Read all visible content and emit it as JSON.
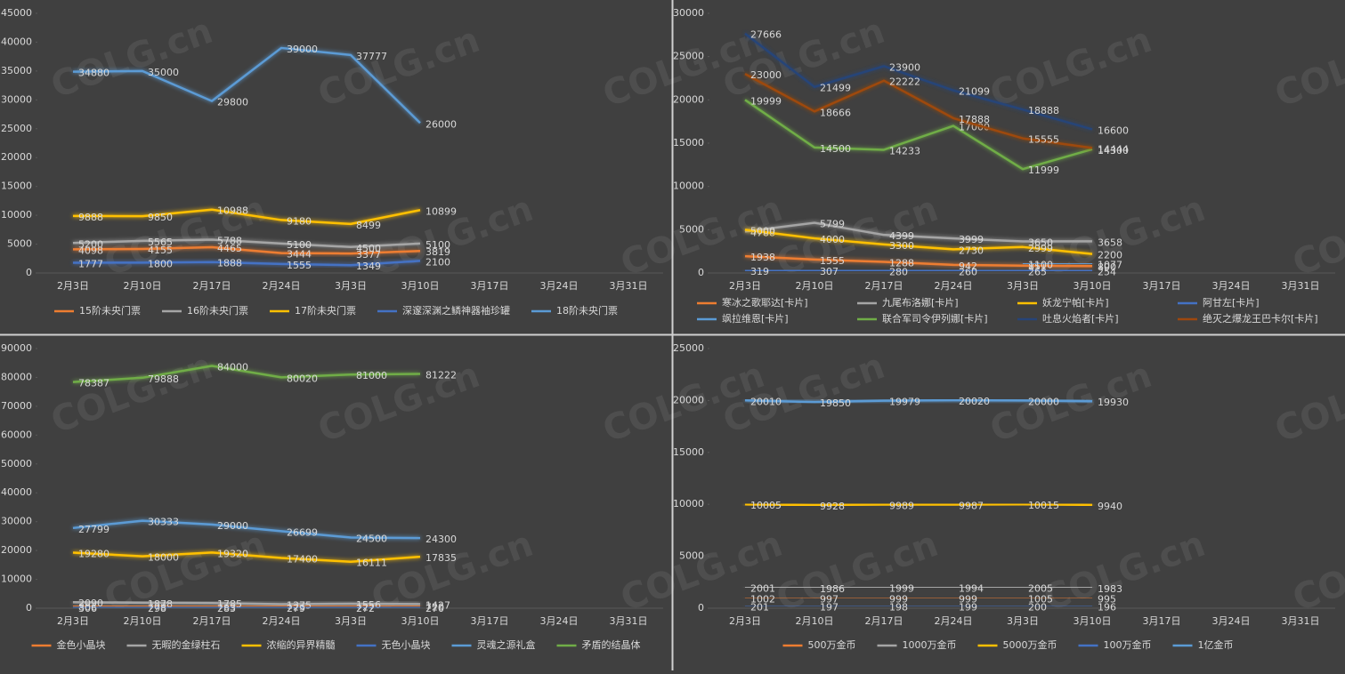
{
  "watermark": "COLG.cn",
  "chart_data": [
    {
      "type": "line",
      "categories": [
        "2月3日",
        "2月10日",
        "2月17日",
        "2月24日",
        "3月3日",
        "3月10日",
        "3月17日",
        "3月24日",
        "3月31日"
      ],
      "ylim": [
        0,
        45000
      ],
      "yticks": [
        0,
        5000,
        10000,
        15000,
        20000,
        25000,
        30000,
        35000,
        40000,
        45000
      ],
      "series": [
        {
          "name": "15阶未央门票",
          "color": "#ed7d31",
          "values": [
            4098,
            4155,
            4465,
            3444,
            3377,
            3819,
            null,
            null,
            null
          ]
        },
        {
          "name": "16阶未央门票",
          "color": "#a5a5a5",
          "values": [
            5200,
            5565,
            5788,
            5100,
            4500,
            5100,
            null,
            null,
            null
          ]
        },
        {
          "name": "17阶未央门票",
          "color": "#ffc000",
          "values": [
            9888,
            9850,
            10988,
            9180,
            8499,
            10899,
            null,
            null,
            null
          ]
        },
        {
          "name": "深邃深渊之鳞神器袖珍罐",
          "color": "#4472c4",
          "values": [
            1777,
            1800,
            1888,
            1555,
            1349,
            2100,
            null,
            null,
            null
          ]
        },
        {
          "name": "18阶未央门票",
          "color": "#5b9bd5",
          "values": [
            34880,
            35000,
            29800,
            39000,
            37777,
            26000,
            null,
            null,
            null
          ]
        }
      ]
    },
    {
      "type": "line",
      "categories": [
        "2月3日",
        "2月10日",
        "2月17日",
        "2月24日",
        "3月3日",
        "3月10日",
        "3月17日",
        "3月24日",
        "3月31日"
      ],
      "ylim": [
        0,
        30000
      ],
      "yticks": [
        0,
        5000,
        10000,
        15000,
        20000,
        25000,
        30000
      ],
      "series": [
        {
          "name": "寒冰之歌耶达[卡片]",
          "color": "#ed7d31",
          "values": [
            1938,
            1555,
            1288,
            942,
            851,
            800,
            null,
            null,
            null
          ]
        },
        {
          "name": "九尾布洛娜[卡片]",
          "color": "#a5a5a5",
          "values": [
            4788,
            5799,
            4399,
            3999,
            3650,
            3658,
            null,
            null,
            null
          ]
        },
        {
          "name": "妖龙宁帕[卡片]",
          "color": "#ffc000",
          "values": [
            5000,
            4000,
            3300,
            2730,
            2999,
            2200,
            null,
            null,
            null
          ]
        },
        {
          "name": "阿甘左[卡片]",
          "color": "#4472c4",
          "values": [
            319,
            307,
            280,
            260,
            265,
            254,
            null,
            null,
            null
          ]
        },
        {
          "name": "飒拉维恩[卡片]",
          "color": "#5b9bd5",
          "values": [
            null,
            null,
            null,
            null,
            1100,
            1077,
            null,
            null,
            null
          ]
        },
        {
          "name": "联合军司令伊列娜[卡片]",
          "color": "#70ad47",
          "values": [
            19999,
            14500,
            14233,
            17000,
            11999,
            14300,
            null,
            null,
            null
          ]
        },
        {
          "name": "吐息火焰者[卡片]",
          "color": "#264478",
          "values": [
            27666,
            21499,
            23900,
            21099,
            18888,
            16600,
            null,
            null,
            null
          ]
        },
        {
          "name": "绝灭之爆龙王巴卡尔[卡片]",
          "color": "#9e480e",
          "values": [
            23000,
            18666,
            22222,
            17888,
            15555,
            14444,
            null,
            null,
            null
          ]
        }
      ]
    },
    {
      "type": "line",
      "categories": [
        "2月3日",
        "2月10日",
        "2月17日",
        "2月24日",
        "3月3日",
        "3月10日",
        "3月17日",
        "3月24日",
        "3月31日"
      ],
      "ylim": [
        0,
        90000
      ],
      "yticks": [
        0,
        10000,
        20000,
        30000,
        40000,
        50000,
        60000,
        70000,
        80000,
        90000
      ],
      "series": [
        {
          "name": "金色小晶块",
          "color": "#ed7d31",
          "values": [
            806,
            778,
            763,
            725,
            727,
            720,
            null,
            null,
            null
          ]
        },
        {
          "name": "无暇的金绿柱石",
          "color": "#a5a5a5",
          "values": [
            2090,
            1878,
            1785,
            1375,
            1556,
            1427,
            null,
            null,
            null
          ]
        },
        {
          "name": "浓缩的异界精髓",
          "color": "#ffc000",
          "values": [
            19280,
            18000,
            19320,
            17400,
            16111,
            17835,
            null,
            null,
            null
          ]
        },
        {
          "name": "无色小晶块",
          "color": "#4472c4",
          "values": [
            306,
            298,
            283,
            279,
            272,
            270,
            null,
            null,
            null
          ]
        },
        {
          "name": "灵魂之源礼盒",
          "color": "#5b9bd5",
          "values": [
            27799,
            30333,
            29000,
            26699,
            24500,
            24300,
            null,
            null,
            null
          ]
        },
        {
          "name": "矛盾的结晶体",
          "color": "#70ad47",
          "values": [
            78387,
            79888,
            84000,
            80020,
            81000,
            81222,
            null,
            null,
            null
          ]
        }
      ]
    },
    {
      "type": "line",
      "categories": [
        "2月3日",
        "2月10日",
        "2月17日",
        "2月24日",
        "3月3日",
        "3月10日",
        "3月17日",
        "3月24日",
        "3月31日"
      ],
      "ylim": [
        0,
        25000
      ],
      "yticks": [
        0,
        5000,
        10000,
        15000,
        20000,
        25000
      ],
      "series": [
        {
          "name": "500万金币",
          "color": "#ed7d31",
          "values": [
            1002,
            997,
            999,
            999,
            1005,
            995,
            null,
            null,
            null
          ]
        },
        {
          "name": "1000万金币",
          "color": "#a5a5a5",
          "values": [
            2001,
            1986,
            1999,
            1994,
            2005,
            1983,
            null,
            null,
            null
          ]
        },
        {
          "name": "5000万金币",
          "color": "#ffc000",
          "values": [
            10005,
            9928,
            9989,
            9987,
            10015,
            9940,
            null,
            null,
            null
          ]
        },
        {
          "name": "100万金币",
          "color": "#4472c4",
          "values": [
            201,
            197,
            198,
            199,
            200,
            196,
            null,
            null,
            null
          ]
        },
        {
          "name": "1亿金币",
          "color": "#5b9bd5",
          "values": [
            20010,
            19850,
            19979,
            20020,
            20000,
            19930,
            null,
            null,
            null
          ]
        }
      ]
    }
  ]
}
